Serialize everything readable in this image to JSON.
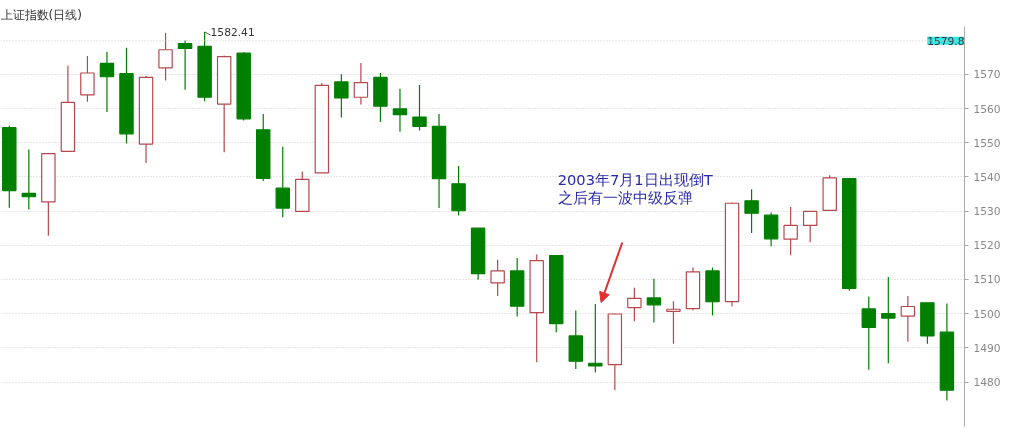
{
  "chart_data": {
    "type": "candlestick",
    "title": "上证指数(日线)",
    "categories": [
      null,
      null,
      null,
      null,
      null,
      null,
      null,
      null,
      null,
      null,
      null,
      null,
      null,
      null,
      null,
      null,
      null,
      null,
      null,
      null,
      null,
      null,
      null,
      null,
      null,
      null,
      null,
      null,
      null,
      null,
      null,
      null,
      null,
      null,
      null,
      null,
      null,
      null,
      null,
      null,
      null,
      null,
      null,
      null,
      null,
      null,
      null,
      null,
      null
    ],
    "ohlc": [
      [
        1554.4,
        1555,
        1531,
        1536
      ],
      [
        1535.2,
        1548,
        1530.5,
        1534.2
      ],
      [
        1532.7,
        1547,
        1522.8,
        1546.8
      ],
      [
        1547.5,
        1572.5,
        1547.5,
        1561.8
      ],
      [
        1564,
        1575.4,
        1562,
        1570.4
      ],
      [
        1573.2,
        1576.6,
        1559,
        1569.3
      ],
      [
        1570.2,
        1577.8,
        1549.8,
        1552.6
      ],
      [
        1549.6,
        1569.5,
        1544.1,
        1569.1
      ],
      [
        1571.9,
        1582.2,
        1568.2,
        1577.2
      ],
      [
        1579,
        1579.9,
        1565.5,
        1577.6
      ],
      [
        1578.2,
        1582.41,
        1562.1,
        1563.3
      ],
      [
        1561.3,
        1575.5,
        1547.2,
        1575.2
      ],
      [
        1576.2,
        1576.5,
        1556.5,
        1557
      ],
      [
        1553.8,
        1558.4,
        1538.8,
        1539.6
      ],
      [
        1536.7,
        1548.8,
        1528.2,
        1530.9
      ],
      [
        1529.9,
        1541.6,
        1529.9,
        1539.3
      ],
      [
        1541.2,
        1567.5,
        1541.2,
        1566.8
      ],
      [
        1567.8,
        1570,
        1557.4,
        1563.1
      ],
      [
        1563.3,
        1573.3,
        1561.2,
        1567.6
      ],
      [
        1569.1,
        1570.4,
        1556.1,
        1560.7
      ],
      [
        1559.9,
        1565.8,
        1553.2,
        1558.2
      ],
      [
        1557.5,
        1566.9,
        1553.6,
        1554.8
      ],
      [
        1554.8,
        1558.4,
        1530.9,
        1539.5
      ],
      [
        1538,
        1543.2,
        1528.7,
        1530.1
      ],
      [
        1525,
        1525,
        1509.9,
        1511.7
      ],
      [
        1509,
        1515.8,
        1505.2,
        1512.5
      ],
      [
        1512.5,
        1516.3,
        1499.2,
        1502.2
      ],
      [
        1500.3,
        1517.3,
        1485.8,
        1515.5
      ],
      [
        1517,
        1517,
        1494.6,
        1497.1
      ],
      [
        1493.5,
        1500.9,
        1483.8,
        1486.1
      ],
      [
        1485.5,
        1502.8,
        1482.8,
        1484.7
      ],
      [
        1485.1,
        1500,
        1477.6,
        1499.9
      ],
      [
        1501.8,
        1507.6,
        1497.8,
        1504.5
      ],
      [
        1504.6,
        1510.2,
        1497.4,
        1502.6
      ],
      [
        1500.7,
        1503.6,
        1491.2,
        1501.3
      ],
      [
        1501.5,
        1513.5,
        1501,
        1512.2
      ],
      [
        1512.5,
        1513.5,
        1499.5,
        1503.5
      ],
      [
        1503.5,
        1532.5,
        1502.2,
        1532.3
      ],
      [
        1533,
        1536.4,
        1523.6,
        1529.4
      ],
      [
        1528.8,
        1529.6,
        1519.7,
        1521.9
      ],
      [
        1521.8,
        1531.2,
        1517.1,
        1525.8
      ],
      [
        1525.8,
        1530,
        1520.9,
        1529.9
      ],
      [
        1530.2,
        1540.5,
        1530,
        1539.7
      ],
      [
        1539.5,
        1539.5,
        1506.7,
        1507.4
      ],
      [
        1501.4,
        1505,
        1483.6,
        1496
      ],
      [
        1500,
        1510.7,
        1485.5,
        1498.7
      ],
      [
        1499.3,
        1505.2,
        1491.8,
        1502.1
      ],
      [
        1503.2,
        1503.2,
        1491.2,
        1493.5
      ],
      [
        1494.6,
        1503,
        1474.6,
        1477.6
      ]
    ],
    "colors": [
      "#007f00",
      "#007f00",
      "#b5484d",
      "#b5484d",
      "#b5484d",
      "#007f00",
      "#007f00",
      "#b5484d",
      "#b5484d",
      "#007f00",
      "#007f00",
      "#b5484d",
      "#007f00",
      "#007f00",
      "#007f00",
      "#b5484d",
      "#b5484d",
      "#007f00",
      "#b5484d",
      "#007f00",
      "#007f00",
      "#007f00",
      "#007f00",
      "#007f00",
      "#007f00",
      "#b5484d",
      "#007f00",
      "#b5484d",
      "#007f00",
      "#007f00",
      "#007f00",
      "#b5484d",
      "#b5484d",
      "#007f00",
      "#b5484d",
      "#b5484d",
      "#007f00",
      "#b5484d",
      "#007f00",
      "#007f00",
      "#b5484d",
      "#b5484d",
      "#b5484d",
      "#007f00",
      "#007f00",
      "#007f00",
      "#b5484d",
      "#007f00",
      "#007f00"
    ],
    "ylim": [
      1467,
      1584
    ],
    "yticks": [
      1480,
      1490,
      1500,
      1510,
      1520,
      1530,
      1540,
      1550,
      1560,
      1570
    ],
    "grid": "y",
    "ref_lines": [
      {
        "axis": "y",
        "value": 1579.8,
        "label": "1579.8"
      }
    ],
    "annotations": [
      "1582.41",
      "2003年7月1日出现倒T\n之后有一波中级反弹"
    ]
  }
}
